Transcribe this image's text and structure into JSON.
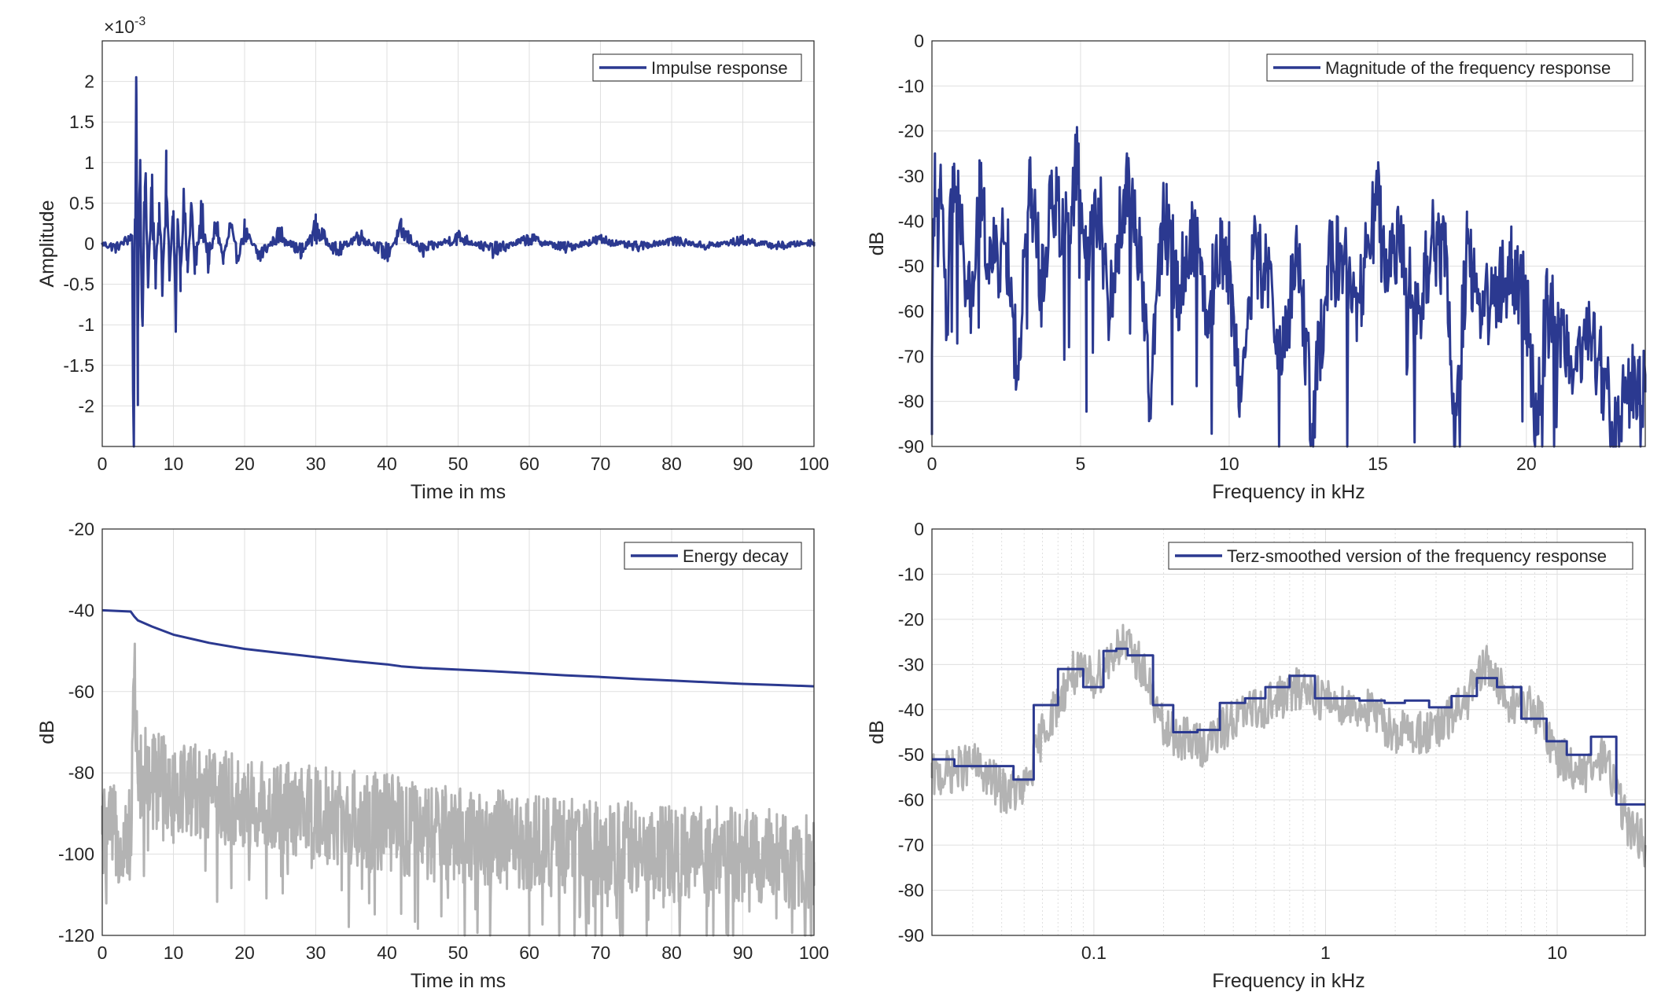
{
  "colors": {
    "series": "#2b3990",
    "gray": "#b3b3b3",
    "axis": "#262626",
    "grid": "#dfdfdf"
  },
  "chart_data": [
    {
      "type": "line",
      "id": "impulse",
      "legend": "Impulse response",
      "legend_position": "top-right",
      "xlabel": "Time in ms",
      "ylabel": "Amplitude",
      "exponent_label": "×10",
      "exponent_power": "-3",
      "xlim": [
        0,
        100
      ],
      "ylim": [
        -2.5,
        2.5
      ],
      "xticks": [
        0,
        10,
        20,
        30,
        40,
        50,
        60,
        70,
        80,
        90,
        100
      ],
      "xticklabels": [
        "0",
        "10",
        "20",
        "30",
        "40",
        "50",
        "60",
        "70",
        "80",
        "90",
        "100"
      ],
      "yticks": [
        2,
        1.5,
        1,
        0.5,
        0,
        -0.5,
        -1,
        -1.5,
        -2
      ],
      "yticklabels": [
        "2",
        "1.5",
        "1",
        "0.5",
        "0",
        "-0.5",
        "-1",
        "-1.5",
        "-2"
      ],
      "grid": true,
      "series": [
        {
          "name": "Impulse response",
          "x": [
            0,
            2,
            4.2,
            4.4,
            4.6,
            4.8,
            5.0,
            5.3,
            5.6,
            6,
            6.5,
            7,
            7.5,
            8,
            8.5,
            9,
            9.5,
            10,
            10.3,
            10.6,
            11,
            11.5,
            12,
            12.5,
            13,
            14,
            15,
            16,
            17,
            18,
            19,
            20,
            22,
            25,
            28,
            30,
            33,
            36,
            40,
            42,
            45,
            50,
            55,
            60,
            65,
            70,
            75,
            80,
            85,
            90,
            95,
            100
          ],
          "y": [
            0,
            -0.05,
            0.1,
            -2.25,
            0.3,
            1.85,
            -1.1,
            0.8,
            -0.9,
            0.7,
            -0.4,
            0.85,
            -0.55,
            0.5,
            -0.45,
            0.6,
            -0.35,
            0.4,
            -0.85,
            0.3,
            -0.3,
            0.45,
            -0.35,
            0.5,
            -0.3,
            0.35,
            -0.25,
            0.25,
            -0.2,
            0.2,
            -0.15,
            0.15,
            -0.15,
            0.12,
            -0.12,
            0.18,
            -0.1,
            0.1,
            -0.12,
            0.15,
            -0.08,
            0.08,
            -0.08,
            0.06,
            -0.05,
            0.05,
            -0.04,
            0.04,
            -0.03,
            0.04,
            -0.03,
            0.02
          ]
        }
      ]
    },
    {
      "type": "line",
      "id": "magnitude",
      "legend": "Magnitude of the frequency response",
      "legend_position": "top-right",
      "xlabel": "Frequency in kHz",
      "ylabel": "dB",
      "xlim": [
        0,
        24
      ],
      "ylim": [
        -90,
        0
      ],
      "xticks": [
        0,
        5,
        10,
        15,
        20
      ],
      "xticklabels": [
        "0",
        "5",
        "10",
        "15",
        "20"
      ],
      "yticks": [
        0,
        -10,
        -20,
        -30,
        -40,
        -50,
        -60,
        -70,
        -80,
        -90
      ],
      "yticklabels": [
        "0",
        "-10",
        "-20",
        "-30",
        "-40",
        "-50",
        "-60",
        "-70",
        "-80",
        "-90"
      ],
      "grid": true,
      "series": [
        {
          "name": "Magnitude of the frequency response",
          "x": [
            0,
            0.1,
            0.2,
            0.3,
            0.5,
            0.7,
            1,
            1.3,
            1.6,
            2,
            2.5,
            2.9,
            3.3,
            3.7,
            4,
            4.5,
            4.9,
            5.2,
            5.6,
            6,
            6.5,
            7,
            7.3,
            7.8,
            8.3,
            8.8,
            9.3,
            9.7,
            10,
            10.4,
            10.8,
            11.3,
            11.8,
            12.3,
            12.8,
            13.3,
            13.8,
            14.3,
            14.7,
            15,
            15.3,
            15.8,
            16.3,
            16.8,
            17.3,
            17.6,
            18,
            18.5,
            19,
            19.5,
            20,
            20.3,
            20.7,
            21,
            21.5,
            22,
            22.5,
            23,
            23.5,
            24
          ],
          "y": [
            -70,
            -25,
            -50,
            -30,
            -65,
            -28,
            -45,
            -60,
            -35,
            -50,
            -45,
            -75,
            -30,
            -55,
            -35,
            -40,
            -28,
            -50,
            -35,
            -60,
            -32,
            -45,
            -80,
            -38,
            -55,
            -42,
            -60,
            -45,
            -50,
            -80,
            -48,
            -52,
            -70,
            -46,
            -85,
            -50,
            -48,
            -62,
            -45,
            -36,
            -55,
            -42,
            -65,
            -44,
            -50,
            -90,
            -45,
            -60,
            -55,
            -50,
            -58,
            -85,
            -60,
            -63,
            -70,
            -65,
            -72,
            -88,
            -75,
            -78
          ]
        }
      ]
    },
    {
      "type": "line",
      "id": "energy",
      "legend": "Energy decay",
      "legend_position": "top-right",
      "xlabel": "Time in ms",
      "ylabel": "dB",
      "xlim": [
        0,
        100
      ],
      "ylim": [
        -120,
        -20
      ],
      "xticks": [
        0,
        10,
        20,
        30,
        40,
        50,
        60,
        70,
        80,
        90,
        100
      ],
      "xticklabels": [
        "0",
        "10",
        "20",
        "30",
        "40",
        "50",
        "60",
        "70",
        "80",
        "90",
        "100"
      ],
      "yticks": [
        -20,
        -40,
        -60,
        -80,
        -100,
        -120
      ],
      "yticklabels": [
        "-20",
        "-40",
        "-60",
        "-80",
        "-100",
        "-120"
      ],
      "grid": true,
      "series": [
        {
          "name": "Energy decay",
          "x": [
            0,
            4,
            4.5,
            5,
            7,
            10,
            15,
            20,
            25,
            30,
            35,
            40,
            42,
            45,
            50,
            55,
            60,
            65,
            70,
            75,
            80,
            85,
            90,
            95,
            100
          ],
          "y": [
            -40,
            -40.3,
            -41.5,
            -42.5,
            -44,
            -46,
            -48,
            -49.5,
            -50.5,
            -51.5,
            -52.5,
            -53.3,
            -53.8,
            -54.2,
            -54.6,
            -55,
            -55.5,
            -56,
            -56.4,
            -56.9,
            -57.3,
            -57.7,
            -58.1,
            -58.4,
            -58.7
          ]
        },
        {
          "kind": "background",
          "x": [
            0,
            4,
            4.5,
            5,
            10,
            15,
            20,
            30,
            40,
            45,
            50,
            60,
            70,
            80,
            90,
            100
          ],
          "y": [
            -95,
            -95,
            -55,
            -80,
            -82,
            -85,
            -88,
            -90,
            -92,
            -95,
            -95,
            -97,
            -98,
            -100,
            -100,
            -102
          ]
        }
      ]
    },
    {
      "type": "line",
      "id": "terz",
      "legend": "Terz-smoothed version of the frequency response",
      "legend_position": "top-right",
      "xlabel": "Frequency in kHz",
      "ylabel": "dB",
      "xscale": "log",
      "xlim": [
        0.02,
        24
      ],
      "ylim": [
        -90,
        0
      ],
      "xticks": [
        0.1,
        1,
        10
      ],
      "xticklabels": [
        "0.1",
        "1",
        "10"
      ],
      "yticks": [
        0,
        -10,
        -20,
        -30,
        -40,
        -50,
        -60,
        -70,
        -80,
        -90
      ],
      "yticklabels": [
        "0",
        "-10",
        "-20",
        "-30",
        "-40",
        "-50",
        "-60",
        "-70",
        "-80",
        "-90"
      ],
      "grid": true,
      "series": [
        {
          "name": "Terz-smoothed version of the frequency response",
          "x": [
            0.02,
            0.025,
            0.025,
            0.045,
            0.045,
            0.055,
            0.055,
            0.07,
            0.07,
            0.09,
            0.09,
            0.11,
            0.11,
            0.125,
            0.125,
            0.14,
            0.14,
            0.18,
            0.18,
            0.22,
            0.22,
            0.28,
            0.28,
            0.35,
            0.35,
            0.45,
            0.45,
            0.55,
            0.55,
            0.7,
            0.7,
            0.9,
            0.9,
            1.1,
            1.1,
            1.4,
            1.4,
            1.8,
            1.8,
            2.2,
            2.2,
            2.8,
            2.8,
            3.5,
            3.5,
            4.5,
            4.5,
            5.5,
            5.5,
            7,
            7,
            9,
            9,
            11,
            11,
            14,
            14,
            18,
            18,
            24
          ],
          "y": [
            -51,
            -51,
            -52.5,
            -52.5,
            -55.5,
            -55.5,
            -39,
            -39,
            -31,
            -31,
            -35,
            -35,
            -27,
            -27,
            -26.5,
            -26.5,
            -28,
            -28,
            -39,
            -39,
            -45,
            -45,
            -44.5,
            -44.5,
            -38.5,
            -38.5,
            -37.5,
            -37.5,
            -35,
            -35,
            -32.5,
            -32.5,
            -37.5,
            -37.5,
            -37.5,
            -37.5,
            -38,
            -38,
            -38.5,
            -38.5,
            -38,
            -38,
            -39.5,
            -39.5,
            -37,
            -37,
            -33,
            -33,
            -35,
            -35,
            -42,
            -42,
            -47,
            -47,
            -50,
            -50,
            -46,
            -46,
            -61,
            -61
          ]
        },
        {
          "kind": "background",
          "x": [
            0.02,
            0.03,
            0.04,
            0.05,
            0.06,
            0.08,
            0.1,
            0.13,
            0.16,
            0.2,
            0.3,
            0.4,
            0.6,
            0.8,
            1,
            1.5,
            2,
            3,
            4,
            5,
            6,
            8,
            10,
            13,
            16,
            20,
            24
          ],
          "y": [
            -55,
            -52,
            -58,
            -58,
            -45,
            -32,
            -33,
            -25,
            -30,
            -45,
            -48,
            -42,
            -38,
            -35,
            -38,
            -40,
            -45,
            -45,
            -38,
            -30,
            -38,
            -40,
            -50,
            -55,
            -50,
            -65,
            -70
          ]
        }
      ]
    }
  ]
}
